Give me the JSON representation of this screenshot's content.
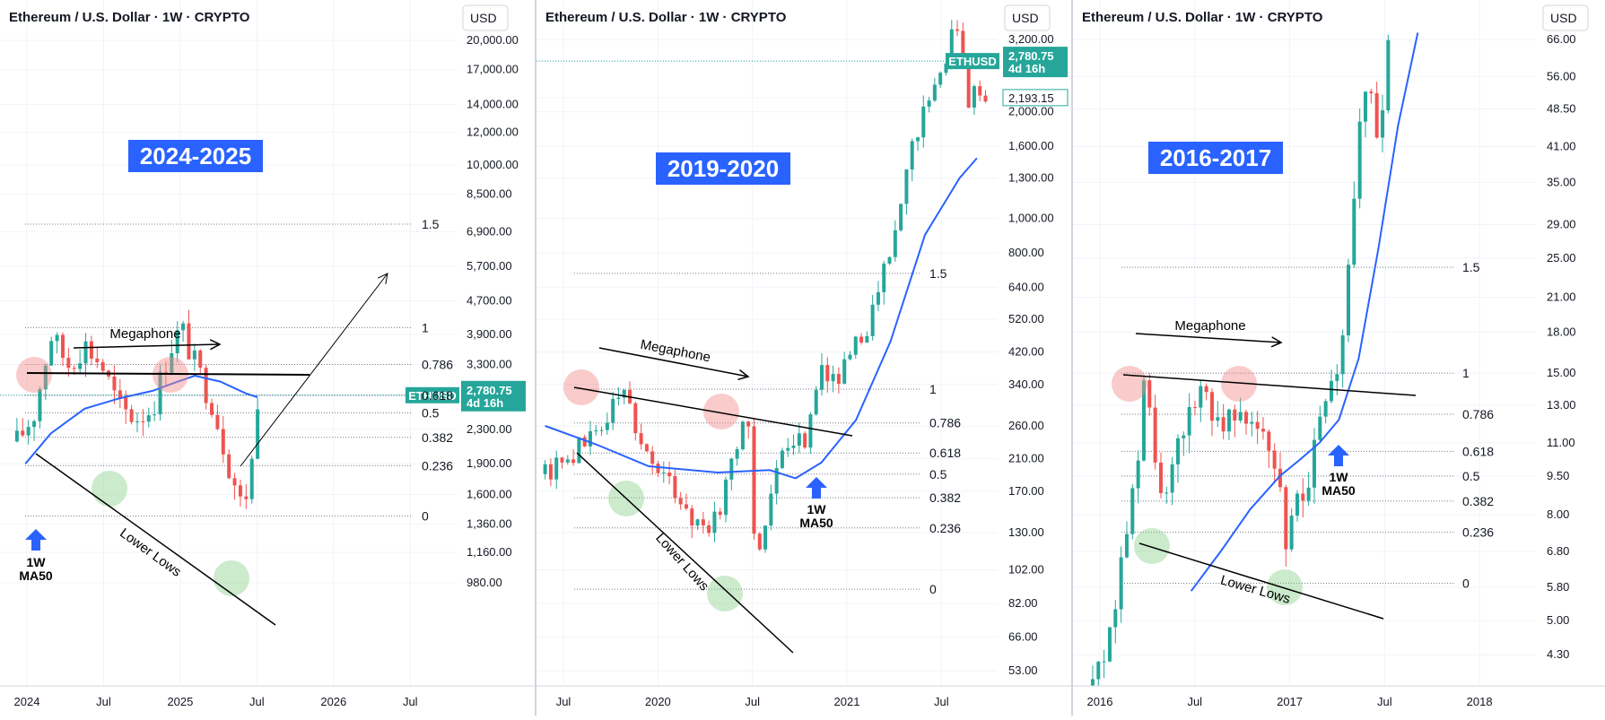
{
  "chart_data": [
    {
      "type": "candlestick",
      "title": "Ethereum / U.S. Dollar · 1W · CRYPTO",
      "currency_button": "USD",
      "period_badge": "2024-2025",
      "y_scale": "log",
      "ylim": [
        900,
        24000
      ],
      "y_ticks": [
        "20,000.00",
        "17,000.00",
        "14,000.00",
        "12,000.00",
        "10,000.00",
        "8,500.00",
        "6,900.00",
        "5,700.00",
        "4,700.00",
        "3,900.00",
        "3,300.00",
        "2,780.75",
        "2,300.00",
        "1,900.00",
        "1,600.00",
        "1,360.00",
        "1,160.00",
        "980.00"
      ],
      "x_ticks": [
        "2024",
        "Jul",
        "2025",
        "Jul",
        "2026",
        "Jul"
      ],
      "price_label": {
        "symbol": "ETHUSD",
        "value": "2,780.75",
        "countdown": "4d 16h"
      },
      "fib_levels": [
        {
          "label": "1.5",
          "price": 7200
        },
        {
          "label": "1",
          "price": 4050
        },
        {
          "label": "0.786",
          "price": 3300
        },
        {
          "label": "0.618",
          "price": 2780
        },
        {
          "label": "0.5",
          "price": 2520
        },
        {
          "label": "0.382",
          "price": 2200
        },
        {
          "label": "0.236",
          "price": 1880
        },
        {
          "label": "0",
          "price": 1420
        }
      ],
      "annotations": {
        "top_pattern": "Megaphone",
        "bottom_trend": "Lower Lows",
        "ma_label_1": "1W",
        "ma_label_2": "MA50"
      },
      "ma50_series": [
        [
          2024.05,
          1900
        ],
        [
          2024.2,
          2250
        ],
        [
          2024.4,
          2580
        ],
        [
          2024.6,
          2730
        ],
        [
          2024.8,
          2850
        ],
        [
          2024.95,
          3000
        ],
        [
          2025.05,
          3100
        ],
        [
          2025.2,
          3000
        ],
        [
          2025.35,
          2810
        ],
        [
          2025.42,
          2750
        ]
      ],
      "price_path": [
        [
          2024.0,
          2150
        ],
        [
          2024.1,
          2500
        ],
        [
          2024.2,
          3900
        ],
        [
          2024.3,
          3300
        ],
        [
          2024.4,
          3700
        ],
        [
          2024.5,
          3300
        ],
        [
          2024.6,
          2600
        ],
        [
          2024.7,
          2450
        ],
        [
          2024.8,
          2600
        ],
        [
          2024.9,
          3600
        ],
        [
          2024.97,
          4050
        ],
        [
          2025.05,
          3300
        ],
        [
          2025.15,
          2700
        ],
        [
          2025.25,
          1900
        ],
        [
          2025.33,
          1480
        ],
        [
          2025.38,
          1800
        ],
        [
          2025.42,
          2780
        ]
      ]
    },
    {
      "type": "candlestick",
      "title": "Ethereum / U.S. Dollar · 1W · CRYPTO",
      "currency_button": "USD",
      "period_badge": "2019-2020",
      "y_scale": "log",
      "ylim": [
        50,
        4200
      ],
      "y_ticks": [
        "3,200.00",
        "2,780.75",
        "2,193.15",
        "2,000.00",
        "1,600.00",
        "1,300.00",
        "1,000.00",
        "800.00",
        "640.00",
        "520.00",
        "420.00",
        "340.00",
        "260.00",
        "210.00",
        "170.00",
        "130.00",
        "102.00",
        "82.00",
        "66.00",
        "53.00"
      ],
      "x_ticks": [
        "Jul",
        "2020",
        "Jul",
        "2021",
        "Jul"
      ],
      "price_label": {
        "symbol": "ETHUSD",
        "value": "2,780.75",
        "countdown": "4d 16h"
      },
      "secondary_price_label": "2,193.15",
      "fib_levels": [
        {
          "label": "1.5",
          "price": 700
        },
        {
          "label": "1",
          "price": 330
        },
        {
          "label": "0.786",
          "price": 265
        },
        {
          "label": "0.618",
          "price": 218
        },
        {
          "label": "0.5",
          "price": 190
        },
        {
          "label": "0.382",
          "price": 163
        },
        {
          "label": "0.236",
          "price": 134
        },
        {
          "label": "0",
          "price": 90
        }
      ],
      "annotations": {
        "top_pattern": "Megaphone",
        "bottom_trend": "Lower Lows",
        "ma_label_1": "1W",
        "ma_label_2": "MA50"
      },
      "ma50_series": [
        [
          2019.0,
          260
        ],
        [
          2019.3,
          230
        ],
        [
          2019.6,
          200
        ],
        [
          2020.0,
          192
        ],
        [
          2020.3,
          195
        ],
        [
          2020.45,
          185
        ],
        [
          2020.6,
          205
        ],
        [
          2020.8,
          270
        ],
        [
          2021.0,
          450
        ],
        [
          2021.2,
          900
        ],
        [
          2021.4,
          1300
        ],
        [
          2021.5,
          1480
        ]
      ],
      "price_path": [
        [
          2019.0,
          190
        ],
        [
          2019.3,
          250
        ],
        [
          2019.45,
          330
        ],
        [
          2019.6,
          210
        ],
        [
          2019.75,
          170
        ],
        [
          2019.9,
          135
        ],
        [
          2020.0,
          140
        ],
        [
          2020.1,
          235
        ],
        [
          2020.18,
          260
        ],
        [
          2020.22,
          110
        ],
        [
          2020.35,
          200
        ],
        [
          2020.5,
          240
        ],
        [
          2020.6,
          390
        ],
        [
          2020.7,
          350
        ],
        [
          2020.85,
          480
        ],
        [
          2021.0,
          800
        ],
        [
          2021.15,
          1800
        ],
        [
          2021.3,
          2500
        ],
        [
          2021.37,
          4100
        ],
        [
          2021.45,
          2200
        ],
        [
          2021.55,
          2300
        ]
      ]
    },
    {
      "type": "candlestick",
      "title": "Ethereum / U.S. Dollar · 1W · CRYPTO",
      "currency_button": "USD",
      "period_badge": "2016-2017",
      "y_scale": "log",
      "ylim": [
        3.8,
        70
      ],
      "y_ticks": [
        "66.00",
        "56.00",
        "48.50",
        "41.00",
        "35.00",
        "29.00",
        "25.00",
        "21.00",
        "18.00",
        "15.00",
        "13.00",
        "11.00",
        "9.50",
        "8.00",
        "6.80",
        "5.80",
        "5.00",
        "4.30"
      ],
      "x_ticks": [
        "2016",
        "Jul",
        "2017",
        "Jul",
        "2018"
      ],
      "fib_levels": [
        {
          "label": "1.5",
          "price": 24
        },
        {
          "label": "1",
          "price": 15
        },
        {
          "label": "0.786",
          "price": 12.5
        },
        {
          "label": "0.618",
          "price": 10.6
        },
        {
          "label": "0.5",
          "price": 9.5
        },
        {
          "label": "0.382",
          "price": 8.5
        },
        {
          "label": "0.236",
          "price": 7.4
        },
        {
          "label": "0",
          "price": 5.9
        }
      ],
      "annotations": {
        "top_pattern": "Megaphone",
        "bottom_trend": "Lower Lows",
        "ma_label_1": "1W",
        "ma_label_2": "MA50"
      },
      "ma50_series": [
        [
          2016.45,
          5.7
        ],
        [
          2016.6,
          6.8
        ],
        [
          2016.75,
          8.2
        ],
        [
          2016.9,
          9.5
        ],
        [
          2017.0,
          10.2
        ],
        [
          2017.1,
          11.0
        ],
        [
          2017.2,
          12.2
        ],
        [
          2017.3,
          16
        ],
        [
          2017.4,
          26
        ],
        [
          2017.5,
          45
        ],
        [
          2017.6,
          68
        ]
      ],
      "price_path": [
        [
          2015.95,
          3.6
        ],
        [
          2016.05,
          5.0
        ],
        [
          2016.15,
          8.5
        ],
        [
          2016.22,
          15.0
        ],
        [
          2016.3,
          8.0
        ],
        [
          2016.4,
          11.0
        ],
        [
          2016.5,
          14.5
        ],
        [
          2016.6,
          12.0
        ],
        [
          2016.7,
          13.5
        ],
        [
          2016.8,
          11.5
        ],
        [
          2016.88,
          9.5
        ],
        [
          2016.93,
          7.2
        ],
        [
          2017.0,
          8.5
        ],
        [
          2017.07,
          10.5
        ],
        [
          2017.13,
          12.5
        ],
        [
          2017.2,
          15
        ],
        [
          2017.27,
          30
        ],
        [
          2017.32,
          50
        ],
        [
          2017.37,
          48
        ],
        [
          2017.4,
          40
        ],
        [
          2017.45,
          70
        ]
      ]
    }
  ]
}
